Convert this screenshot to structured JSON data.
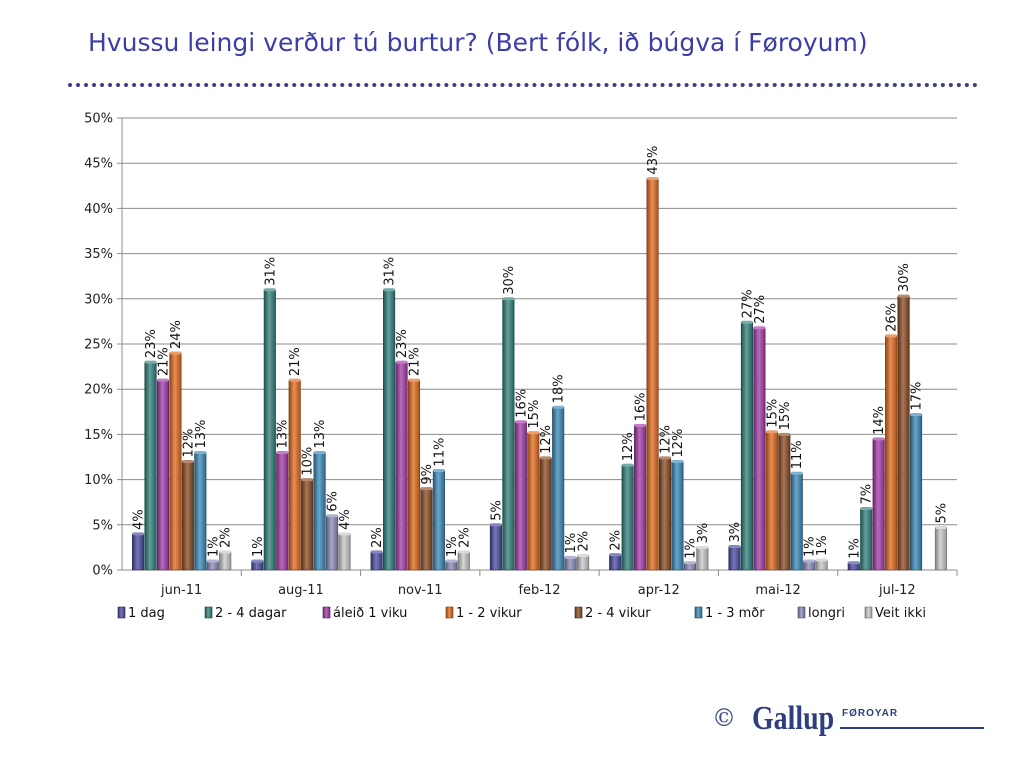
{
  "title": "Hvussu leingi verður tú burtur? (Bert fólk, ið búgva í Føroyum)",
  "footer": {
    "copyright": "©",
    "logo_word": "Gallup",
    "logo_tag": "FØROYAR"
  },
  "chart_data": {
    "type": "bar",
    "categories": [
      "jun-11",
      "aug-11",
      "nov-11",
      "feb-12",
      "apr-12",
      "mai-12",
      "jul-12"
    ],
    "ylim": [
      0,
      50
    ],
    "yticks": [
      0,
      5,
      10,
      15,
      20,
      25,
      30,
      35,
      40,
      45,
      50
    ],
    "ytick_labels": [
      "0%",
      "5%",
      "10%",
      "15%",
      "20%",
      "25%",
      "30%",
      "35%",
      "40%",
      "45%",
      "50%"
    ],
    "grid": true,
    "legend_position": "bottom",
    "series": [
      {
        "name": "1 dag",
        "color": "#4a4aa0",
        "values": [
          4,
          1,
          2,
          5,
          1.7,
          2.6,
          0.8
        ],
        "labels": [
          "4%",
          "1%",
          "2%",
          "5%",
          "2%",
          "3%",
          "1%"
        ]
      },
      {
        "name": "2 - 4 dagar",
        "color": "#2f7f7a",
        "values": [
          23,
          31,
          31,
          30,
          11.6,
          27.4,
          6.8
        ],
        "labels": [
          "23%",
          "31%",
          "31%",
          "30%",
          "12%",
          "27%",
          "7%"
        ]
      },
      {
        "name": "áleið 1 viku",
        "color": "#a23aa6",
        "values": [
          21,
          13,
          23,
          16.4,
          16,
          26.8,
          14.5
        ],
        "labels": [
          "21%",
          "13%",
          "23%",
          "16%",
          "16%",
          "27%",
          "14%"
        ]
      },
      {
        "name": "1 - 2 vikur",
        "color": "#e06a1e",
        "values": [
          24,
          21,
          21,
          15.2,
          43.3,
          15.3,
          25.9
        ],
        "labels": [
          "24%",
          "21%",
          "21%",
          "15%",
          "43%",
          "15%",
          "26%"
        ]
      },
      {
        "name": "2 - 4 vikur",
        "color": "#8a4a22",
        "values": [
          12,
          10,
          9,
          12.4,
          12.4,
          15,
          30.3
        ],
        "labels": [
          "12%",
          "10%",
          "9%",
          "12%",
          "12%",
          "15%",
          "30%"
        ]
      },
      {
        "name": "1 - 3 mðr",
        "color": "#3a88b8",
        "values": [
          13,
          13,
          11,
          18,
          12,
          10.7,
          17.2
        ],
        "labels": [
          "13%",
          "13%",
          "11%",
          "18%",
          "12%",
          "11%",
          "17%"
        ]
      },
      {
        "name": "longri",
        "color": "#8a8ab8",
        "values": [
          1,
          6,
          1,
          1.4,
          0.8,
          1,
          null
        ],
        "labels": [
          "1%",
          "6%",
          "1%",
          "1%",
          "1%",
          "1%",
          ""
        ]
      },
      {
        "name": "Veit ikki",
        "color": "#c8c8c8",
        "values": [
          2,
          4,
          2,
          1.6,
          2.5,
          1.1,
          4.7
        ],
        "labels": [
          "2%",
          "4%",
          "2%",
          "2%",
          "3%",
          "1%",
          "5%"
        ]
      }
    ]
  }
}
